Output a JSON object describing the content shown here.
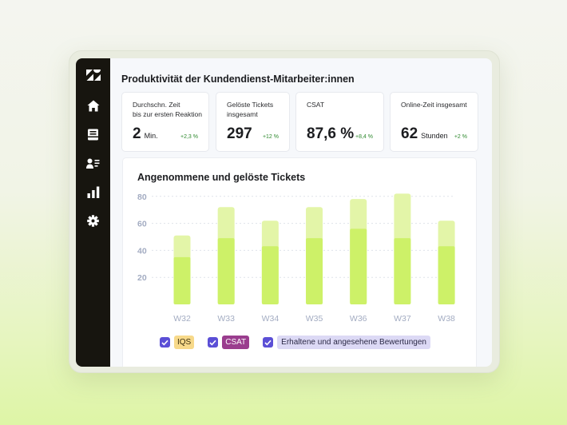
{
  "colors": {
    "sidebar_bg": "#17150f",
    "bar_light": "#e3f5a8",
    "bar_dark": "#cdf168",
    "checkbox": "#5b4fd6",
    "iqs_tag": "#f7d98a",
    "csat_tag": "#9a3d8e",
    "ratings_tag": "#dcd9f5",
    "delta_green": "#2f8a2f"
  },
  "sidebar": {
    "items": [
      {
        "icon": "zendesk-logo-icon"
      },
      {
        "icon": "home-icon"
      },
      {
        "icon": "inbox-icon"
      },
      {
        "icon": "users-icon"
      },
      {
        "icon": "bar-chart-icon"
      },
      {
        "icon": "gear-icon"
      }
    ]
  },
  "page": {
    "title": "Produktivität der Kundendienst-Mitarbeiter:innen"
  },
  "kpis": [
    {
      "label": "Durchschn. Zeit\nbis zur ersten Reaktion",
      "value": "2",
      "unit": "Min.",
      "delta": "+2,3 %"
    },
    {
      "label": "Gelöste Tickets\ninsgesamt",
      "value": "297",
      "unit": "",
      "delta": "+12 %"
    },
    {
      "label": "CSAT",
      "value": "87,6 %",
      "unit": "",
      "delta": "+8,4 %"
    },
    {
      "label": "Online-Zeit insgesamt",
      "value": "62",
      "unit": "Stunden",
      "delta": "+2 %"
    }
  ],
  "chart": {
    "title": "Angenommene und gelöste Tickets"
  },
  "chart_data": {
    "type": "bar",
    "title": "Angenommene und gelöste Tickets",
    "categories": [
      "W32",
      "W33",
      "W34",
      "W35",
      "W36",
      "W37",
      "W38"
    ],
    "series": [
      {
        "values": [
          35,
          49,
          43,
          49,
          56,
          49,
          43
        ]
      },
      {
        "values": [
          51,
          72,
          62,
          72,
          78,
          82,
          62
        ]
      }
    ],
    "yticks": [
      20,
      40,
      60,
      80
    ],
    "ylim": [
      0,
      84
    ],
    "grid": true,
    "stacked": false
  },
  "legend": {
    "items": [
      {
        "label": "IQS",
        "checked": true
      },
      {
        "label": "CSAT",
        "checked": true
      },
      {
        "label": "Erhaltene und angesehene Bewertungen",
        "checked": true
      }
    ]
  }
}
